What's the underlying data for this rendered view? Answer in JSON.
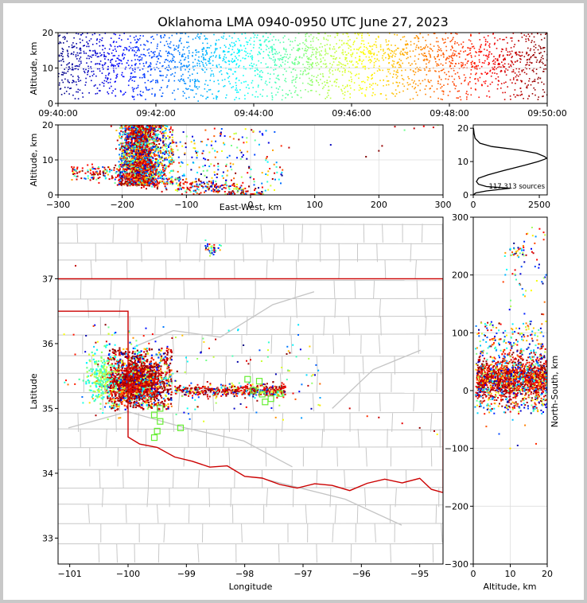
{
  "title": "Oklahoma LMA 0940-0950 UTC June 27, 2023",
  "colors": {
    "border": "#cc0000",
    "county_lines": "#c8c8c8",
    "station": "#66ee33",
    "profile_line": "#000000",
    "grid": "#dddddd"
  },
  "chart_data": [
    {
      "id": "time_height",
      "type": "scatter",
      "ylabel": "Altitude, km",
      "xlabel": "",
      "ylim": [
        0,
        20
      ],
      "yticks": [
        "0",
        "10",
        "20"
      ],
      "xlim": [
        "09:40:00",
        "09:50:00"
      ],
      "xticks": [
        "09:40:00",
        "09:42:00",
        "09:44:00",
        "09:46:00",
        "09:48:00",
        "09:50:00"
      ],
      "color_scale": "time (blue to red)",
      "grid": true
    },
    {
      "id": "ew_height",
      "type": "scatter",
      "xlabel": "East-West, km",
      "ylabel": "Altitude, km",
      "xlim": [
        -300,
        300
      ],
      "ylim": [
        0,
        20
      ],
      "xticks": [
        "−300",
        "−200",
        "−100",
        "0",
        "100",
        "200",
        "300"
      ],
      "yticks": [
        "0",
        "10",
        "20"
      ],
      "dense_core_x": [
        -210,
        -140
      ],
      "grid": true
    },
    {
      "id": "altitude_histogram",
      "type": "line",
      "xlabel": "",
      "ylabel": "",
      "xlim": [
        0,
        2800
      ],
      "ylim": [
        0,
        21
      ],
      "xticks": [
        "0",
        "2500"
      ],
      "yticks": [
        "0",
        "10",
        "20"
      ],
      "annotation": "117,313 sources",
      "profile": [
        {
          "alt": 0.0,
          "count": 0
        },
        {
          "alt": 0.6,
          "count": 100
        },
        {
          "alt": 1.2,
          "count": 500
        },
        {
          "alt": 2.0,
          "count": 1400
        },
        {
          "alt": 2.5,
          "count": 500
        },
        {
          "alt": 3.2,
          "count": 200
        },
        {
          "alt": 4.0,
          "count": 120
        },
        {
          "alt": 5.0,
          "count": 200
        },
        {
          "alt": 6.0,
          "count": 550
        },
        {
          "alt": 7.0,
          "count": 1000
        },
        {
          "alt": 8.0,
          "count": 1500
        },
        {
          "alt": 9.0,
          "count": 2000
        },
        {
          "alt": 10.0,
          "count": 2450
        },
        {
          "alt": 10.7,
          "count": 2700
        },
        {
          "alt": 11.0,
          "count": 2780
        },
        {
          "alt": 11.5,
          "count": 2700
        },
        {
          "alt": 12.5,
          "count": 2400
        },
        {
          "alt": 13.5,
          "count": 1700
        },
        {
          "alt": 14.5,
          "count": 700
        },
        {
          "alt": 15.5,
          "count": 250
        },
        {
          "alt": 17.0,
          "count": 70
        },
        {
          "alt": 18.5,
          "count": 30
        },
        {
          "alt": 20.0,
          "count": 10
        }
      ]
    },
    {
      "id": "plan_view",
      "type": "scatter",
      "xlabel": "Longitude",
      "ylabel": "Latitude",
      "xlim": [
        -101.2,
        -94.6
      ],
      "ylim": [
        32.6,
        37.95
      ],
      "xticks": [
        "−101",
        "−100",
        "−99",
        "−98",
        "−97",
        "−96",
        "−95"
      ],
      "yticks": [
        "33",
        "34",
        "35",
        "36",
        "37"
      ],
      "dense_core": {
        "lon": -99.8,
        "lat": 35.45
      }
    },
    {
      "id": "ns_height",
      "type": "scatter",
      "xlabel": "Altitude, km",
      "ylabel": "North-South, km",
      "xlim": [
        0,
        20
      ],
      "ylim": [
        -300,
        300
      ],
      "xticks": [
        "0",
        "10",
        "20"
      ],
      "yticks": [
        "−300",
        "−200",
        "−100",
        "0",
        "100",
        "200",
        "300"
      ]
    }
  ]
}
